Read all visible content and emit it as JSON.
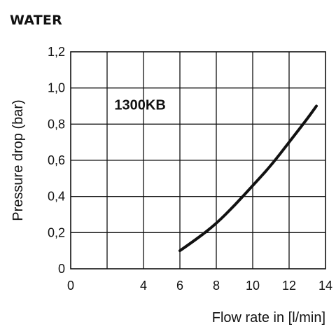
{
  "header": {
    "title": "WATER"
  },
  "chart_data": {
    "type": "line",
    "title": "WATER",
    "xlabel": "Flow rate in [l/min]",
    "ylabel": "Pressure drop (bar)",
    "xlim": [
      0,
      14
    ],
    "ylim": [
      0,
      1.2
    ],
    "x_ticks": [
      "0",
      "4",
      "6",
      "8",
      "10",
      "12",
      "14"
    ],
    "x_tick_values": [
      0,
      4,
      6,
      8,
      10,
      12,
      14
    ],
    "y_ticks": [
      "0",
      "0,2",
      "0,4",
      "0,6",
      "0,8",
      "1,0",
      "1,2"
    ],
    "y_tick_values": [
      0,
      0.2,
      0.4,
      0.6,
      0.8,
      1.0,
      1.2
    ],
    "grid": true,
    "annotation": "1300KB",
    "series": [
      {
        "x": [
          6,
          7,
          8,
          9,
          10,
          11,
          12,
          13,
          13.5
        ],
        "y": [
          0.1,
          0.17,
          0.25,
          0.35,
          0.46,
          0.57,
          0.7,
          0.83,
          0.9
        ]
      }
    ]
  }
}
